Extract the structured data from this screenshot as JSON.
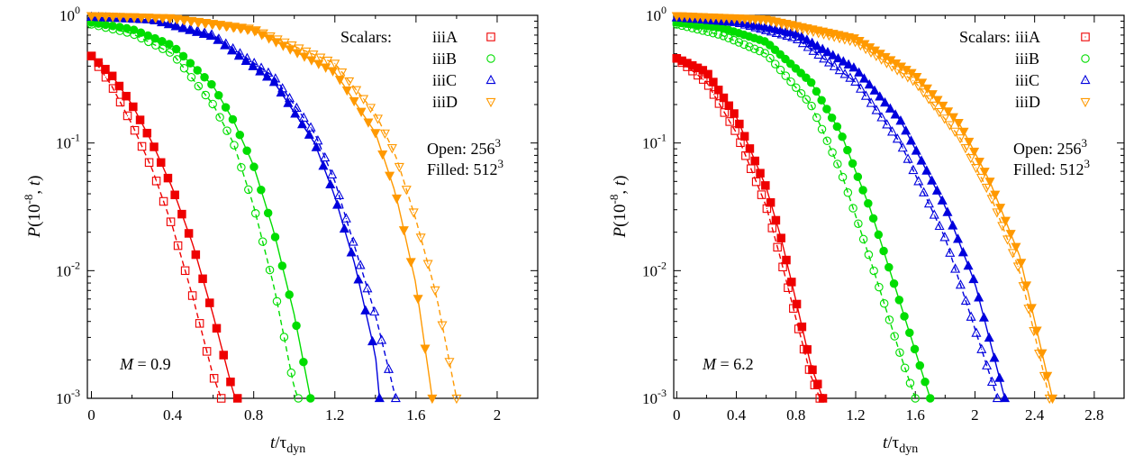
{
  "chart_data": [
    {
      "type": "scatter",
      "xlabel": "t/τ_dyn",
      "ylabel": "P(10^-8, t)",
      "yscale": "log",
      "xlim": [
        -0.02,
        2.2
      ],
      "ylim": [
        0.001,
        1
      ],
      "xticks": [
        "0",
        "0.4",
        "0.8",
        "1.2",
        "1.6",
        "2"
      ],
      "yticks": [
        "10^-3",
        "10^-2",
        "10^-1",
        "10^0"
      ],
      "grid": false,
      "legend_placement": "top-right",
      "legend_title": "Scalars:",
      "annotations": [
        "M = 0.9",
        "Open:  256^3",
        "Filled: 512^3"
      ],
      "series": [
        {
          "name": "iiiA",
          "color": "#ee0000",
          "marker": "square",
          "open": {
            "x": [
              0,
              0.1,
              0.2,
              0.3,
              0.4,
              0.5,
              0.6,
              0.64
            ],
            "y": [
              0.48,
              0.28,
              0.14,
              0.062,
              0.022,
              0.0062,
              0.0015,
              0.001
            ]
          },
          "filled": {
            "x": [
              0,
              0.1,
              0.2,
              0.3,
              0.4,
              0.5,
              0.6,
              0.7,
              0.72
            ],
            "y": [
              0.48,
              0.34,
              0.2,
              0.1,
              0.044,
              0.016,
              0.0045,
              0.0011,
              0.001
            ]
          }
        },
        {
          "name": "iiiB",
          "color": "#00dd00",
          "marker": "circle",
          "open": {
            "x": [
              0,
              0.2,
              0.4,
              0.6,
              0.7,
              0.8,
              0.9,
              1.0,
              1.02
            ],
            "y": [
              0.85,
              0.72,
              0.5,
              0.2,
              0.1,
              0.032,
              0.0075,
              0.0012,
              0.001
            ]
          },
          "filled": {
            "x": [
              0,
              0.2,
              0.4,
              0.6,
              0.7,
              0.8,
              0.9,
              1.0,
              1.08
            ],
            "y": [
              0.88,
              0.78,
              0.58,
              0.28,
              0.15,
              0.066,
              0.02,
              0.0045,
              0.001
            ]
          }
        },
        {
          "name": "iiiC",
          "color": "#0000dd",
          "marker": "triangle-up",
          "open": {
            "x": [
              0,
              0.3,
              0.6,
              0.9,
              1.1,
              1.2,
              1.3,
              1.4,
              1.5
            ],
            "y": [
              0.97,
              0.93,
              0.7,
              0.33,
              0.12,
              0.05,
              0.015,
              0.0045,
              0.001
            ]
          },
          "filled": {
            "x": [
              0,
              0.3,
              0.6,
              0.9,
              1.1,
              1.2,
              1.3,
              1.4,
              1.42
            ],
            "y": [
              0.97,
              0.92,
              0.68,
              0.3,
              0.1,
              0.038,
              0.011,
              0.0022,
              0.001
            ]
          }
        },
        {
          "name": "iiiD",
          "color": "#ff9900",
          "marker": "triangle-down",
          "open": {
            "x": [
              0,
              0.4,
              0.8,
              1.2,
              1.4,
              1.5,
              1.6,
              1.7,
              1.8
            ],
            "y": [
              0.99,
              0.95,
              0.78,
              0.42,
              0.17,
              0.08,
              0.025,
              0.0065,
              0.001
            ]
          },
          "filled": {
            "x": [
              0,
              0.4,
              0.8,
              1.2,
              1.4,
              1.5,
              1.6,
              1.68
            ],
            "y": [
              0.99,
              0.95,
              0.76,
              0.36,
              0.12,
              0.04,
              0.0078,
              0.001
            ]
          }
        }
      ]
    },
    {
      "type": "scatter",
      "xlabel": "t/τ_dyn",
      "ylabel": "P(10^-8, t)",
      "yscale": "log",
      "xlim": [
        -0.02,
        3.0
      ],
      "ylim": [
        0.001,
        1
      ],
      "xticks": [
        "0",
        "0.4",
        "0.8",
        "1.2",
        "1.6",
        "2",
        "2.4",
        "2.8"
      ],
      "yticks": [
        "10^-3",
        "10^-2",
        "10^-1",
        "10^0"
      ],
      "grid": false,
      "legend_placement": "top-right",
      "legend_title": "Scalars:",
      "annotations": [
        "M = 6.2",
        "Open:  256^3",
        "Filled: 512^3"
      ],
      "series": [
        {
          "name": "iiiA",
          "color": "#ee0000",
          "marker": "square",
          "open": {
            "x": [
              0,
              0.2,
              0.4,
              0.6,
              0.7,
              0.8,
              0.9,
              0.96
            ],
            "y": [
              0.46,
              0.3,
              0.12,
              0.032,
              0.012,
              0.0042,
              0.0015,
              0.001
            ]
          },
          "filled": {
            "x": [
              0,
              0.2,
              0.4,
              0.6,
              0.7,
              0.8,
              0.9,
              0.98
            ],
            "y": [
              0.46,
              0.36,
              0.16,
              0.045,
              0.018,
              0.0058,
              0.0018,
              0.001
            ]
          }
        },
        {
          "name": "iiiB",
          "color": "#00dd00",
          "marker": "circle",
          "open": {
            "x": [
              0,
              0.3,
              0.6,
              0.9,
              1.1,
              1.3,
              1.5,
              1.6
            ],
            "y": [
              0.85,
              0.7,
              0.5,
              0.2,
              0.06,
              0.012,
              0.0022,
              0.001
            ]
          },
          "filled": {
            "x": [
              0,
              0.3,
              0.6,
              0.9,
              1.1,
              1.3,
              1.5,
              1.7
            ],
            "y": [
              0.88,
              0.8,
              0.62,
              0.3,
              0.12,
              0.03,
              0.0055,
              0.001
            ]
          }
        },
        {
          "name": "iiiC",
          "color": "#0000dd",
          "marker": "triangle-up",
          "open": {
            "x": [
              0,
              0.4,
              0.8,
              1.2,
              1.5,
              1.8,
              2.0,
              2.15
            ],
            "y": [
              0.96,
              0.88,
              0.66,
              0.3,
              0.1,
              0.018,
              0.0035,
              0.001
            ]
          },
          "filled": {
            "x": [
              0,
              0.4,
              0.8,
              1.2,
              1.5,
              1.8,
              2.0,
              2.2
            ],
            "y": [
              0.96,
              0.9,
              0.72,
              0.38,
              0.15,
              0.032,
              0.008,
              0.001
            ]
          }
        },
        {
          "name": "iiiD",
          "color": "#ff9900",
          "marker": "triangle-down",
          "open": {
            "x": [
              0,
              0.6,
              1.2,
              1.6,
              1.9,
              2.1,
              2.3,
              2.5
            ],
            "y": [
              0.99,
              0.92,
              0.62,
              0.3,
              0.11,
              0.04,
              0.01,
              0.001
            ]
          },
          "filled": {
            "x": [
              0,
              0.6,
              1.2,
              1.6,
              1.9,
              2.1,
              2.3,
              2.52
            ],
            "y": [
              0.99,
              0.93,
              0.66,
              0.34,
              0.14,
              0.05,
              0.013,
              0.001
            ]
          }
        }
      ]
    }
  ]
}
